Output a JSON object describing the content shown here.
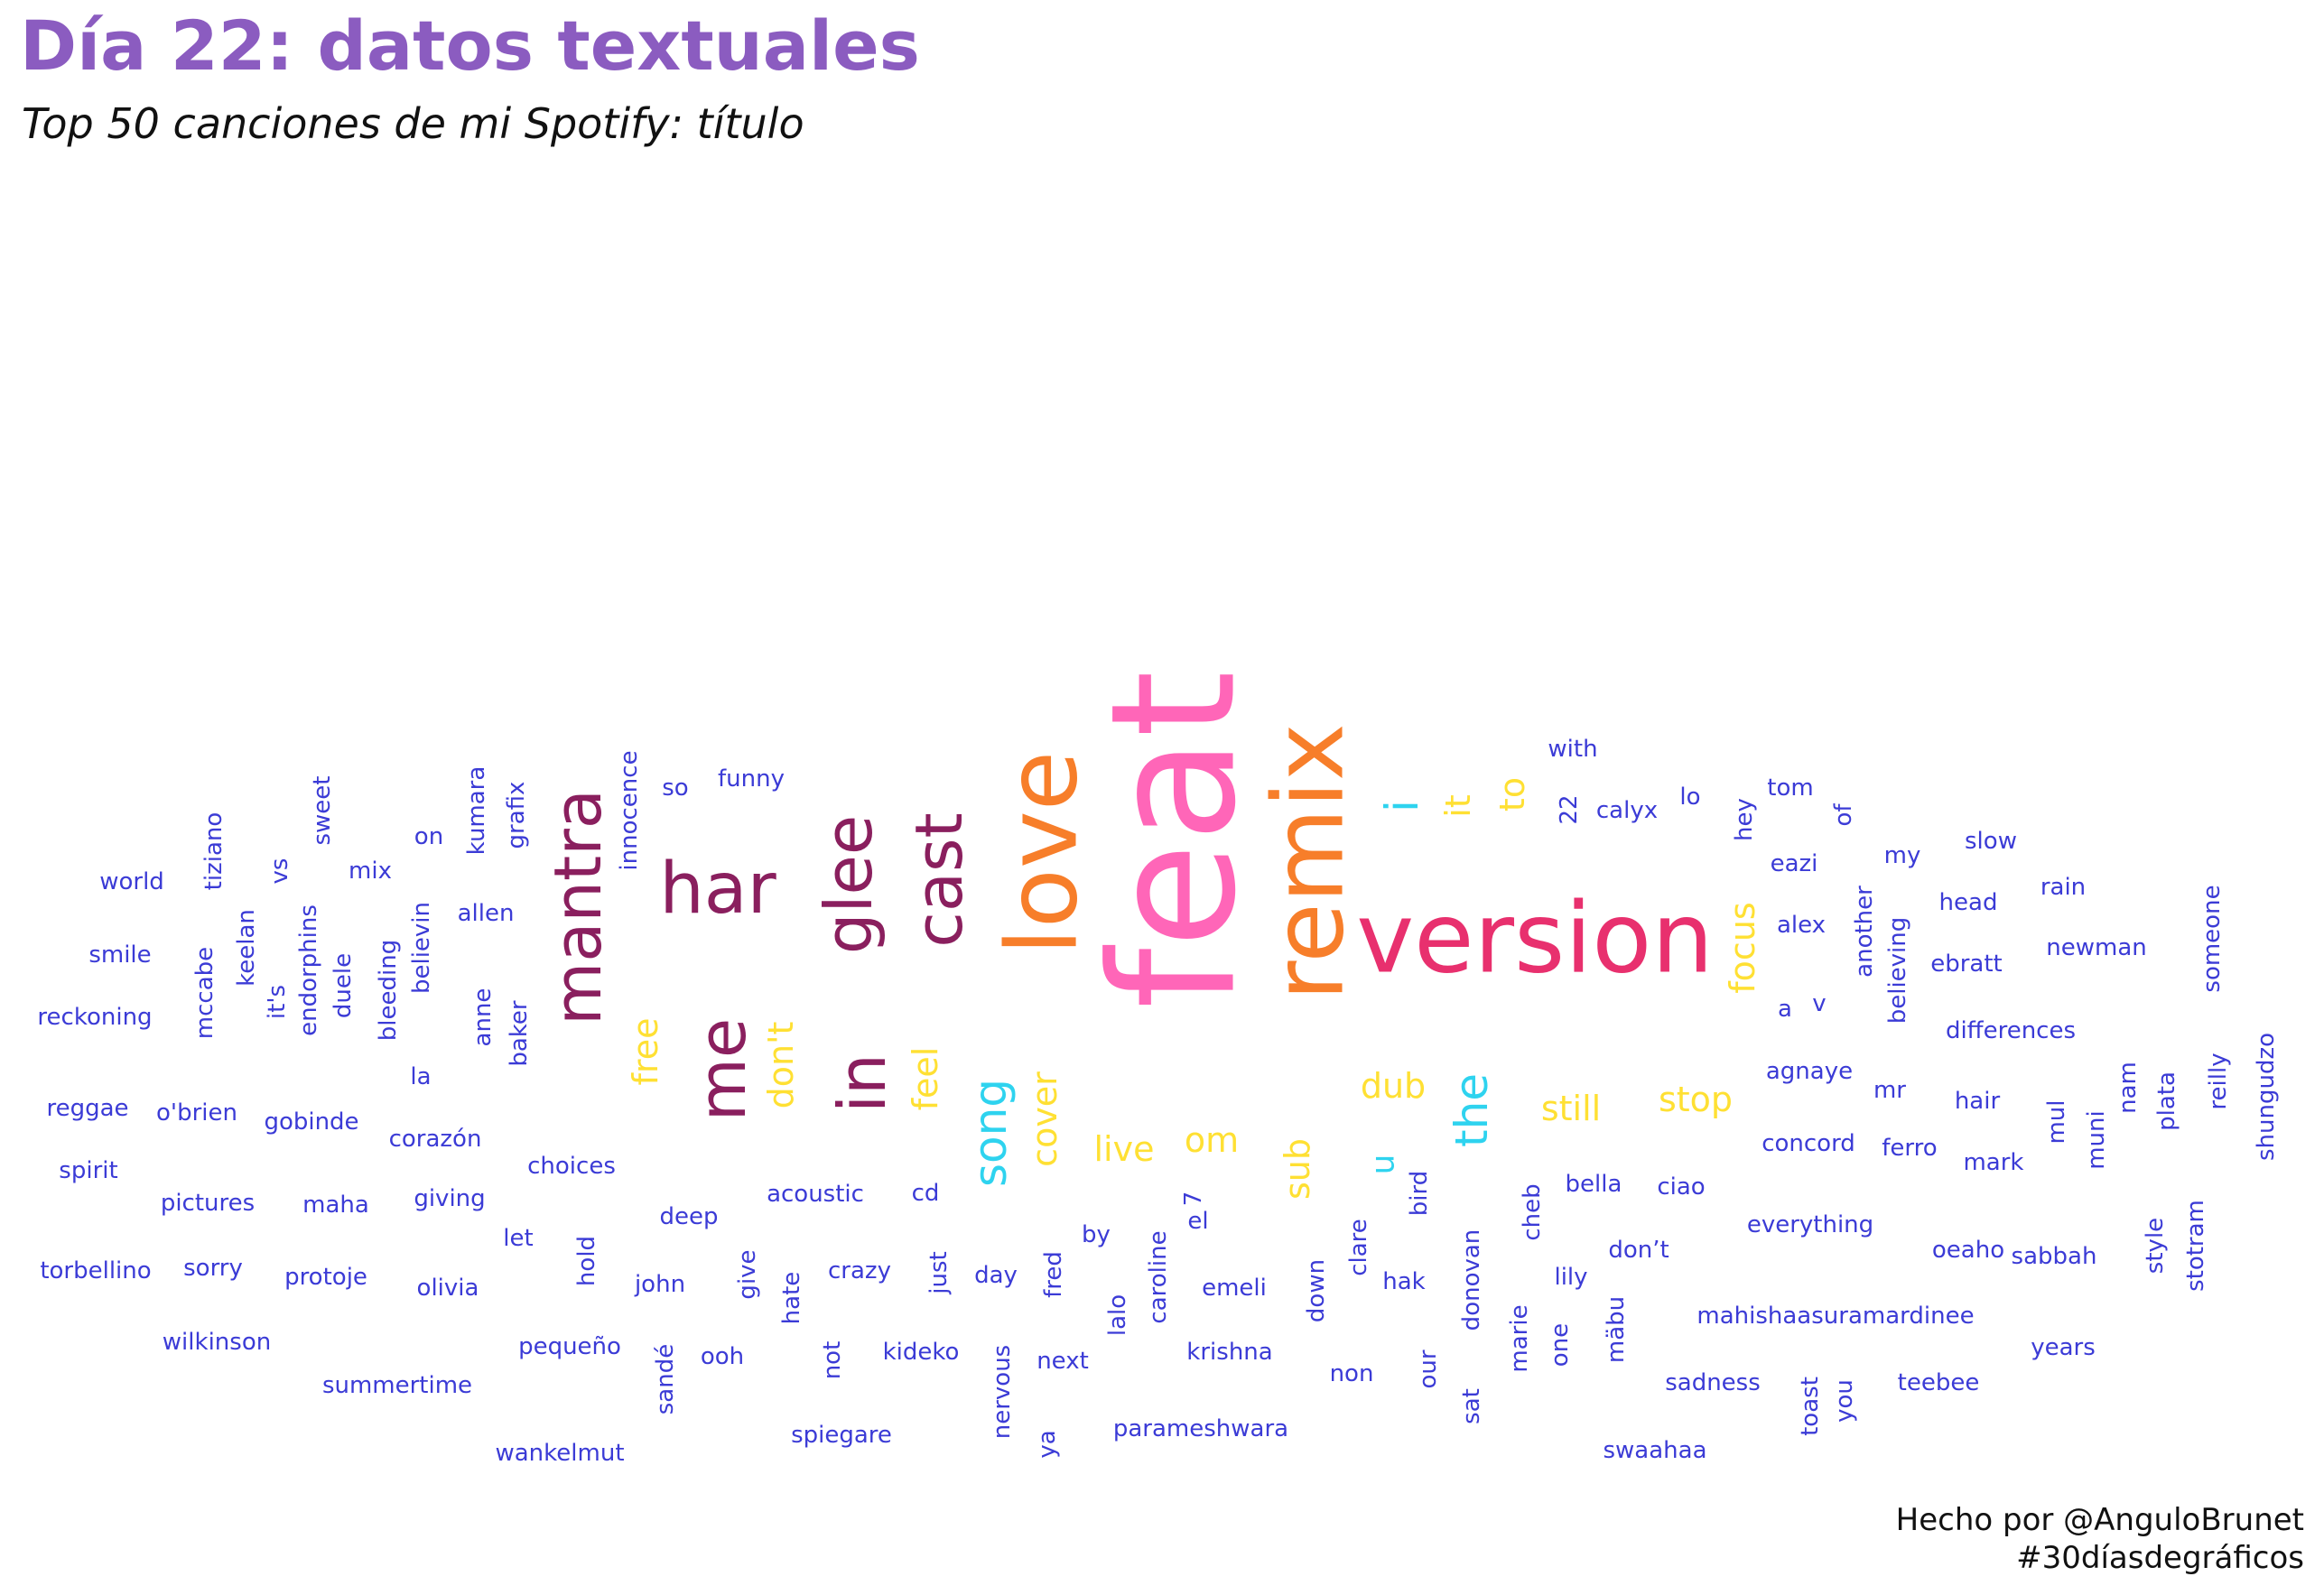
{
  "title": "Día 22: datos textuales",
  "subtitle": "Top 50 canciones de mi Spotify: título",
  "caption": {
    "line1": "Hecho por @AnguloBrunet",
    "line2": "#30díasdegráficos"
  },
  "chart_data": {
    "type": "wordcloud",
    "colors": {
      "feat": "#ff66b8",
      "remix": "#f77e2a",
      "love": "#f77e2a",
      "version": "#e8306e",
      "mid": "#8a1f5e",
      "small": "#ffe033",
      "cyan": "#2ed3ef",
      "tiny": "#3b3bd6"
    },
    "words": [
      {
        "text": "feat",
        "size": 190,
        "color": "feat",
        "rotate": true
      },
      {
        "text": "remix",
        "size": 108,
        "color": "remix",
        "rotate": true
      },
      {
        "text": "love",
        "size": 108,
        "color": "love",
        "rotate": true
      },
      {
        "text": "version",
        "size": 108,
        "color": "version",
        "rotate": false
      },
      {
        "text": "har",
        "size": 78,
        "color": "mid",
        "rotate": false
      },
      {
        "text": "mantra",
        "size": 72,
        "color": "mid",
        "rotate": true
      },
      {
        "text": "glee",
        "size": 72,
        "color": "mid",
        "rotate": true
      },
      {
        "text": "cast",
        "size": 72,
        "color": "mid",
        "rotate": true
      },
      {
        "text": "me",
        "size": 72,
        "color": "mid",
        "rotate": true
      },
      {
        "text": "in",
        "size": 72,
        "color": "mid",
        "rotate": true
      },
      {
        "text": "i",
        "size": 50,
        "color": "cyan",
        "rotate": true
      },
      {
        "text": "song",
        "size": 50,
        "color": "cyan",
        "rotate": true
      },
      {
        "text": "the",
        "size": 50,
        "color": "cyan",
        "rotate": true
      },
      {
        "text": "u",
        "size": 36,
        "color": "cyan",
        "rotate": true
      },
      {
        "text": "it",
        "size": 38,
        "color": "small",
        "rotate": true
      },
      {
        "text": "to",
        "size": 38,
        "color": "small",
        "rotate": true
      },
      {
        "text": "focus",
        "size": 38,
        "color": "small",
        "rotate": true
      },
      {
        "text": "free",
        "size": 38,
        "color": "small",
        "rotate": true
      },
      {
        "text": "don't",
        "size": 38,
        "color": "small",
        "rotate": true
      },
      {
        "text": "feel",
        "size": 38,
        "color": "small",
        "rotate": true
      },
      {
        "text": "cover",
        "size": 38,
        "color": "small",
        "rotate": true
      },
      {
        "text": "live",
        "size": 38,
        "color": "small",
        "rotate": false
      },
      {
        "text": "om",
        "size": 38,
        "color": "small",
        "rotate": false
      },
      {
        "text": "sub",
        "size": 38,
        "color": "small",
        "rotate": true
      },
      {
        "text": "dub",
        "size": 38,
        "color": "small",
        "rotate": false
      },
      {
        "text": "still",
        "size": 38,
        "color": "small",
        "rotate": false
      },
      {
        "text": "stop",
        "size": 38,
        "color": "small",
        "rotate": false
      },
      {
        "text": "with",
        "size": 26,
        "color": "tiny",
        "rotate": false
      },
      {
        "text": "funny",
        "size": 26,
        "color": "tiny",
        "rotate": false
      },
      {
        "text": "so",
        "size": 26,
        "color": "tiny",
        "rotate": false
      },
      {
        "text": "innocence",
        "size": 26,
        "color": "tiny",
        "rotate": true
      },
      {
        "text": "grafix",
        "size": 26,
        "color": "tiny",
        "rotate": true
      },
      {
        "text": "kumara",
        "size": 26,
        "color": "tiny",
        "rotate": true
      },
      {
        "text": "on",
        "size": 26,
        "color": "tiny",
        "rotate": false
      },
      {
        "text": "sweet",
        "size": 26,
        "color": "tiny",
        "rotate": true
      },
      {
        "text": "tiziano",
        "size": 26,
        "color": "tiny",
        "rotate": true
      },
      {
        "text": "vs",
        "size": 26,
        "color": "tiny",
        "rotate": true
      },
      {
        "text": "mix",
        "size": 26,
        "color": "tiny",
        "rotate": false
      },
      {
        "text": "world",
        "size": 26,
        "color": "tiny",
        "rotate": false
      },
      {
        "text": "allen",
        "size": 26,
        "color": "tiny",
        "rotate": false
      },
      {
        "text": "believin",
        "size": 26,
        "color": "tiny",
        "rotate": true
      },
      {
        "text": "bleeding",
        "size": 26,
        "color": "tiny",
        "rotate": true
      },
      {
        "text": "duele",
        "size": 26,
        "color": "tiny",
        "rotate": true
      },
      {
        "text": "endorphins",
        "size": 26,
        "color": "tiny",
        "rotate": true
      },
      {
        "text": "keelan",
        "size": 26,
        "color": "tiny",
        "rotate": true
      },
      {
        "text": "it's",
        "size": 26,
        "color": "tiny",
        "rotate": true
      },
      {
        "text": "mccabe",
        "size": 26,
        "color": "tiny",
        "rotate": true
      },
      {
        "text": "smile",
        "size": 26,
        "color": "tiny",
        "rotate": false
      },
      {
        "text": "reckoning",
        "size": 26,
        "color": "tiny",
        "rotate": false
      },
      {
        "text": "anne",
        "size": 26,
        "color": "tiny",
        "rotate": true
      },
      {
        "text": "baker",
        "size": 26,
        "color": "tiny",
        "rotate": true
      },
      {
        "text": "la",
        "size": 26,
        "color": "tiny",
        "rotate": false
      },
      {
        "text": "reggae",
        "size": 26,
        "color": "tiny",
        "rotate": false
      },
      {
        "text": "o'brien",
        "size": 26,
        "color": "tiny",
        "rotate": false
      },
      {
        "text": "gobinde",
        "size": 26,
        "color": "tiny",
        "rotate": false
      },
      {
        "text": "corazón",
        "size": 26,
        "color": "tiny",
        "rotate": false
      },
      {
        "text": "spirit",
        "size": 26,
        "color": "tiny",
        "rotate": false
      },
      {
        "text": "choices",
        "size": 26,
        "color": "tiny",
        "rotate": false
      },
      {
        "text": "pictures",
        "size": 26,
        "color": "tiny",
        "rotate": false
      },
      {
        "text": "maha",
        "size": 26,
        "color": "tiny",
        "rotate": false
      },
      {
        "text": "giving",
        "size": 26,
        "color": "tiny",
        "rotate": false
      },
      {
        "text": "let",
        "size": 26,
        "color": "tiny",
        "rotate": false
      },
      {
        "text": "deep",
        "size": 26,
        "color": "tiny",
        "rotate": false
      },
      {
        "text": "acoustic",
        "size": 26,
        "color": "tiny",
        "rotate": false
      },
      {
        "text": "cd",
        "size": 26,
        "color": "tiny",
        "rotate": false
      },
      {
        "text": "torbellino",
        "size": 26,
        "color": "tiny",
        "rotate": false
      },
      {
        "text": "sorry",
        "size": 26,
        "color": "tiny",
        "rotate": false
      },
      {
        "text": "protoje",
        "size": 26,
        "color": "tiny",
        "rotate": false
      },
      {
        "text": "olivia",
        "size": 26,
        "color": "tiny",
        "rotate": false
      },
      {
        "text": "hold",
        "size": 26,
        "color": "tiny",
        "rotate": true
      },
      {
        "text": "john",
        "size": 26,
        "color": "tiny",
        "rotate": false
      },
      {
        "text": "give",
        "size": 26,
        "color": "tiny",
        "rotate": true
      },
      {
        "text": "hate",
        "size": 26,
        "color": "tiny",
        "rotate": true
      },
      {
        "text": "crazy",
        "size": 26,
        "color": "tiny",
        "rotate": false
      },
      {
        "text": "just",
        "size": 26,
        "color": "tiny",
        "rotate": true
      },
      {
        "text": "day",
        "size": 26,
        "color": "tiny",
        "rotate": false
      },
      {
        "text": "fred",
        "size": 26,
        "color": "tiny",
        "rotate": true
      },
      {
        "text": "wilkinson",
        "size": 26,
        "color": "tiny",
        "rotate": false
      },
      {
        "text": "summertime",
        "size": 26,
        "color": "tiny",
        "rotate": false
      },
      {
        "text": "pequeño",
        "size": 26,
        "color": "tiny",
        "rotate": false
      },
      {
        "text": "sandé",
        "size": 26,
        "color": "tiny",
        "rotate": true
      },
      {
        "text": "ooh",
        "size": 26,
        "color": "tiny",
        "rotate": false
      },
      {
        "text": "not",
        "size": 26,
        "color": "tiny",
        "rotate": true
      },
      {
        "text": "kideko",
        "size": 26,
        "color": "tiny",
        "rotate": false
      },
      {
        "text": "nervous",
        "size": 26,
        "color": "tiny",
        "rotate": true
      },
      {
        "text": "next",
        "size": 26,
        "color": "tiny",
        "rotate": false
      },
      {
        "text": "wankelmut",
        "size": 26,
        "color": "tiny",
        "rotate": false
      },
      {
        "text": "spiegare",
        "size": 26,
        "color": "tiny",
        "rotate": false
      },
      {
        "text": "ya",
        "size": 26,
        "color": "tiny",
        "rotate": true
      },
      {
        "text": "by",
        "size": 26,
        "color": "tiny",
        "rotate": false
      },
      {
        "text": "7",
        "size": 26,
        "color": "tiny",
        "rotate": true
      },
      {
        "text": "el",
        "size": 26,
        "color": "tiny",
        "rotate": false
      },
      {
        "text": "caroline",
        "size": 26,
        "color": "tiny",
        "rotate": true
      },
      {
        "text": "lalo",
        "size": 26,
        "color": "tiny",
        "rotate": true
      },
      {
        "text": "emeli",
        "size": 26,
        "color": "tiny",
        "rotate": false
      },
      {
        "text": "krishna",
        "size": 26,
        "color": "tiny",
        "rotate": false
      },
      {
        "text": "parameshwara",
        "size": 26,
        "color": "tiny",
        "rotate": false
      },
      {
        "text": "down",
        "size": 26,
        "color": "tiny",
        "rotate": true
      },
      {
        "text": "clare",
        "size": 26,
        "color": "tiny",
        "rotate": true
      },
      {
        "text": "non",
        "size": 26,
        "color": "tiny",
        "rotate": false
      },
      {
        "text": "bird",
        "size": 26,
        "color": "tiny",
        "rotate": true
      },
      {
        "text": "hak",
        "size": 26,
        "color": "tiny",
        "rotate": false
      },
      {
        "text": "our",
        "size": 26,
        "color": "tiny",
        "rotate": true
      },
      {
        "text": "donovan",
        "size": 26,
        "color": "tiny",
        "rotate": true
      },
      {
        "text": "sat",
        "size": 26,
        "color": "tiny",
        "rotate": true
      },
      {
        "text": "cheb",
        "size": 26,
        "color": "tiny",
        "rotate": true
      },
      {
        "text": "marie",
        "size": 26,
        "color": "tiny",
        "rotate": true
      },
      {
        "text": "one",
        "size": 26,
        "color": "tiny",
        "rotate": true
      },
      {
        "text": "bella",
        "size": 26,
        "color": "tiny",
        "rotate": false
      },
      {
        "text": "ciao",
        "size": 26,
        "color": "tiny",
        "rotate": false
      },
      {
        "text": "lily",
        "size": 26,
        "color": "tiny",
        "rotate": false
      },
      {
        "text": "don’t",
        "size": 26,
        "color": "tiny",
        "rotate": false
      },
      {
        "text": "mäbu",
        "size": 26,
        "color": "tiny",
        "rotate": true
      },
      {
        "text": "swaahaa",
        "size": 26,
        "color": "tiny",
        "rotate": false
      },
      {
        "text": "sadness",
        "size": 26,
        "color": "tiny",
        "rotate": false
      },
      {
        "text": "mahishaasuramardinee",
        "size": 26,
        "color": "tiny",
        "rotate": false
      },
      {
        "text": "everything",
        "size": 26,
        "color": "tiny",
        "rotate": false
      },
      {
        "text": "concord",
        "size": 26,
        "color": "tiny",
        "rotate": false
      },
      {
        "text": "agnaye",
        "size": 26,
        "color": "tiny",
        "rotate": false
      },
      {
        "text": "toast",
        "size": 26,
        "color": "tiny",
        "rotate": true
      },
      {
        "text": "you",
        "size": 26,
        "color": "tiny",
        "rotate": true
      },
      {
        "text": "teebee",
        "size": 26,
        "color": "tiny",
        "rotate": false
      },
      {
        "text": "oeaho",
        "size": 26,
        "color": "tiny",
        "rotate": false
      },
      {
        "text": "ferro",
        "size": 26,
        "color": "tiny",
        "rotate": false
      },
      {
        "text": "mr",
        "size": 26,
        "color": "tiny",
        "rotate": false
      },
      {
        "text": "hair",
        "size": 26,
        "color": "tiny",
        "rotate": false
      },
      {
        "text": "mark",
        "size": 26,
        "color": "tiny",
        "rotate": false
      },
      {
        "text": "sabbah",
        "size": 26,
        "color": "tiny",
        "rotate": false
      },
      {
        "text": "years",
        "size": 26,
        "color": "tiny",
        "rotate": false
      },
      {
        "text": "style",
        "size": 26,
        "color": "tiny",
        "rotate": true
      },
      {
        "text": "stotram",
        "size": 26,
        "color": "tiny",
        "rotate": true
      },
      {
        "text": "mul",
        "size": 26,
        "color": "tiny",
        "rotate": true
      },
      {
        "text": "muni",
        "size": 26,
        "color": "tiny",
        "rotate": true
      },
      {
        "text": "nam",
        "size": 26,
        "color": "tiny",
        "rotate": true
      },
      {
        "text": "plata",
        "size": 26,
        "color": "tiny",
        "rotate": true
      },
      {
        "text": "reilly",
        "size": 26,
        "color": "tiny",
        "rotate": true
      },
      {
        "text": "shungudzo",
        "size": 26,
        "color": "tiny",
        "rotate": true
      },
      {
        "text": "differences",
        "size": 26,
        "color": "tiny",
        "rotate": false
      },
      {
        "text": "a",
        "size": 26,
        "color": "tiny",
        "rotate": false
      },
      {
        "text": "v",
        "size": 26,
        "color": "tiny",
        "rotate": false
      },
      {
        "text": "believing",
        "size": 26,
        "color": "tiny",
        "rotate": true
      },
      {
        "text": "another",
        "size": 26,
        "color": "tiny",
        "rotate": true
      },
      {
        "text": "alex",
        "size": 26,
        "color": "tiny",
        "rotate": false
      },
      {
        "text": "ebratt",
        "size": 26,
        "color": "tiny",
        "rotate": false
      },
      {
        "text": "newman",
        "size": 26,
        "color": "tiny",
        "rotate": false
      },
      {
        "text": "someone",
        "size": 26,
        "color": "tiny",
        "rotate": true
      },
      {
        "text": "head",
        "size": 26,
        "color": "tiny",
        "rotate": false
      },
      {
        "text": "rain",
        "size": 26,
        "color": "tiny",
        "rotate": false
      },
      {
        "text": "eazi",
        "size": 26,
        "color": "tiny",
        "rotate": false
      },
      {
        "text": "my",
        "size": 26,
        "color": "tiny",
        "rotate": false
      },
      {
        "text": "slow",
        "size": 26,
        "color": "tiny",
        "rotate": false
      },
      {
        "text": "hey",
        "size": 26,
        "color": "tiny",
        "rotate": true
      },
      {
        "text": "of",
        "size": 26,
        "color": "tiny",
        "rotate": true
      },
      {
        "text": "tom",
        "size": 26,
        "color": "tiny",
        "rotate": false
      },
      {
        "text": "lo",
        "size": 26,
        "color": "tiny",
        "rotate": false
      },
      {
        "text": "calyx",
        "size": 26,
        "color": "tiny",
        "rotate": false
      },
      {
        "text": "22",
        "size": 26,
        "color": "tiny",
        "rotate": true
      }
    ]
  }
}
